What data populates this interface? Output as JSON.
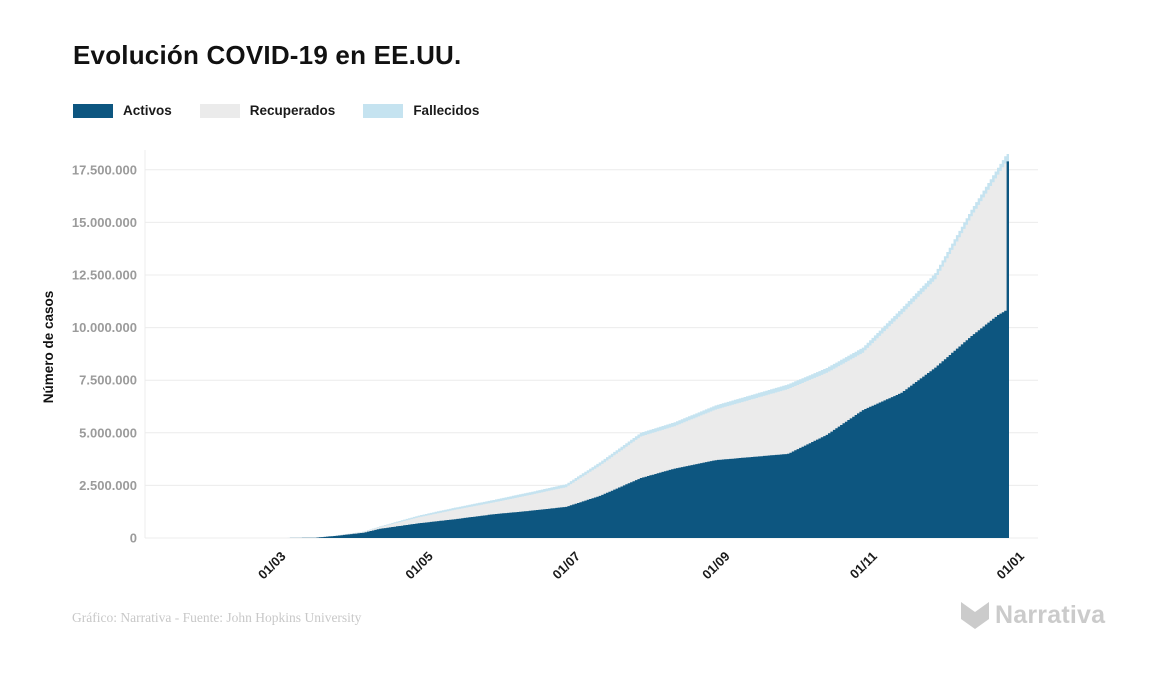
{
  "title": "Evolución COVID-19 en EE.UU.",
  "footer": {
    "credit": "Gráfico: Narrativa - Fuente: John Hopkins University",
    "brand": "Narrativa"
  },
  "chart_data": {
    "type": "area",
    "stacked": true,
    "title": "Evolución COVID-19 en EE.UU.",
    "xlabel": "",
    "ylabel": "Número de casos",
    "ylim": [
      0,
      18600000
    ],
    "y_ticks": [
      {
        "value": 0,
        "label": "0"
      },
      {
        "value": 2500000,
        "label": "2.500.000"
      },
      {
        "value": 5000000,
        "label": "5.000.000"
      },
      {
        "value": 7500000,
        "label": "7.500.000"
      },
      {
        "value": 10000000,
        "label": "10.000.000"
      },
      {
        "value": 12500000,
        "label": "12.500.000"
      },
      {
        "value": 15000000,
        "label": "15.000.000"
      },
      {
        "value": 17500000,
        "label": "17.500.000"
      }
    ],
    "x_ticks": [
      {
        "day": 60,
        "label": "01/03"
      },
      {
        "day": 121,
        "label": "01/05"
      },
      {
        "day": 182,
        "label": "01/07"
      },
      {
        "day": 244,
        "label": "01/09"
      },
      {
        "day": 305,
        "label": "01/11"
      },
      {
        "day": 366,
        "label": "01/01"
      }
    ],
    "x_domain_days": [
      8,
      378
    ],
    "grid": true,
    "legend_position": "top-left",
    "series": [
      {
        "name": "Activos",
        "key": "a",
        "color": "#0d5680"
      },
      {
        "name": "Recuperados",
        "key": "r",
        "color": "#ebebeb"
      },
      {
        "name": "Fallecidos",
        "key": "f",
        "color": "#c5e3f0"
      }
    ],
    "points": [
      {
        "d": 60,
        "date": "01/03",
        "a": 70,
        "r": 0,
        "f": 1
      },
      {
        "d": 69,
        "date": "10/03",
        "a": 3000,
        "r": 50,
        "f": 30
      },
      {
        "d": 78,
        "date": "19/03",
        "a": 13000,
        "r": 200,
        "f": 250
      },
      {
        "d": 86,
        "date": "27/03",
        "a": 95000,
        "r": 4000,
        "f": 2000
      },
      {
        "d": 98,
        "date": "08/04",
        "a": 250000,
        "r": 40000,
        "f": 13000
      },
      {
        "d": 105,
        "date": "15/04",
        "a": 440000,
        "r": 85000,
        "f": 27000
      },
      {
        "d": 121,
        "date": "01/05",
        "a": 700000,
        "r": 285000,
        "f": 82000
      },
      {
        "d": 135,
        "date": "15/05",
        "a": 880000,
        "r": 440000,
        "f": 100000
      },
      {
        "d": 152,
        "date": "01/06",
        "a": 1130000,
        "r": 560000,
        "f": 118000
      },
      {
        "d": 166,
        "date": "15/06",
        "a": 1280000,
        "r": 740000,
        "f": 130000
      },
      {
        "d": 182,
        "date": "01/07",
        "a": 1480000,
        "r": 935000,
        "f": 140000
      },
      {
        "d": 196,
        "date": "15/07",
        "a": 2000000,
        "r": 1440000,
        "f": 155000
      },
      {
        "d": 213,
        "date": "01/08",
        "a": 2850000,
        "r": 1975000,
        "f": 175000
      },
      {
        "d": 227,
        "date": "15/08",
        "a": 3300000,
        "r": 2015000,
        "f": 185000
      },
      {
        "d": 244,
        "date": "01/09",
        "a": 3700000,
        "r": 2405000,
        "f": 195000
      },
      {
        "d": 259,
        "date": "16/09",
        "a": 3850000,
        "r": 2740000,
        "f": 210000
      },
      {
        "d": 274,
        "date": "01/10",
        "a": 4000000,
        "r": 3080000,
        "f": 220000
      },
      {
        "d": 290,
        "date": "17/10",
        "a": 4900000,
        "r": 2950000,
        "f": 230000
      },
      {
        "d": 305,
        "date": "01/11",
        "a": 6080000,
        "r": 2725000,
        "f": 245000
      },
      {
        "d": 321,
        "date": "17/11",
        "a": 6900000,
        "r": 3730000,
        "f": 270000
      },
      {
        "d": 335,
        "date": "01/12",
        "a": 8100000,
        "r": 4200000,
        "f": 290000
      },
      {
        "d": 350,
        "date": "16/12",
        "a": 9600000,
        "r": 5690000,
        "f": 310000
      },
      {
        "d": 361,
        "date": "27/12",
        "a": 10600000,
        "r": 6670000,
        "f": 330000
      },
      {
        "d": 364,
        "date": "30/12",
        "a": 10800000,
        "r": 7000000,
        "f": 340000
      },
      {
        "d": 365,
        "date": "31/12",
        "a": 17900000,
        "r": 0,
        "f": 350000
      }
    ]
  },
  "colors": {
    "grid": "#ececec",
    "y_tick_text": "#9b9b9b",
    "x_tick_text": "#1a1a1a",
    "axis_title": "#111111",
    "brand_gray": "#cbcbcb"
  }
}
